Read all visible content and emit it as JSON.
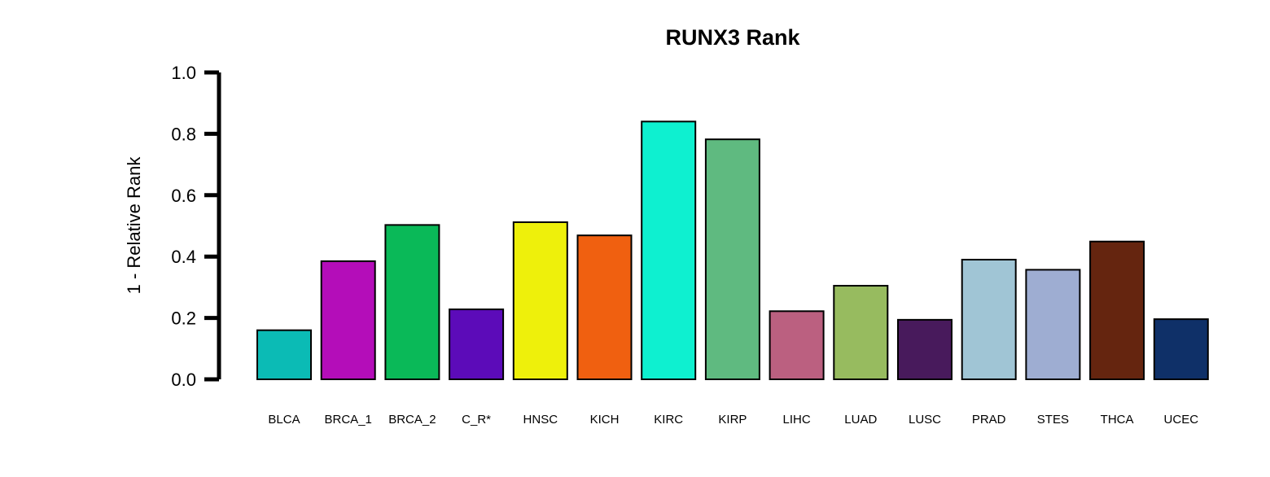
{
  "chart_data": {
    "type": "bar",
    "title": "RUNX3 Rank",
    "xlabel": "",
    "ylabel": "1 - Relative Rank",
    "ylim": [
      0,
      1.0
    ],
    "yticks": [
      "0.0",
      "0.2",
      "0.4",
      "0.6",
      "0.8",
      "1.0"
    ],
    "ytick_values": [
      0,
      0.2,
      0.4,
      0.6,
      0.8,
      1.0
    ],
    "grid": false,
    "categories": [
      "BLCA",
      "BRCA_1",
      "BRCA_2",
      "C_R*",
      "HNSC",
      "KICH",
      "KIRC",
      "KIRP",
      "LIHC",
      "LUAD",
      "LUSC",
      "PRAD",
      "STES",
      "THCA",
      "UCEC"
    ],
    "values": [
      0.16,
      0.385,
      0.503,
      0.228,
      0.512,
      0.469,
      0.84,
      0.782,
      0.222,
      0.305,
      0.194,
      0.39,
      0.357,
      0.449,
      0.196
    ],
    "colors": [
      "#0bbbb5",
      "#b40db9",
      "#0ab958",
      "#5c0bb9",
      "#eef00b",
      "#f06010",
      "#0ef0d0",
      "#5fba80",
      "#bb6080",
      "#97bb5f",
      "#481a5c",
      "#a0c5d5",
      "#9eadd2",
      "#65250f",
      "#0f3068"
    ]
  }
}
